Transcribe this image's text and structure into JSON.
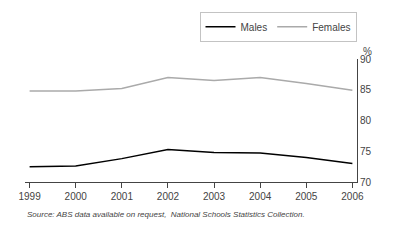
{
  "chart_data": {
    "type": "line",
    "x": [
      1999,
      2000,
      2001,
      2002,
      2003,
      2004,
      2005,
      2006
    ],
    "series": [
      {
        "name": "Males",
        "color": "#000000",
        "values": [
          72.5,
          72.6,
          73.8,
          75.3,
          74.8,
          74.7,
          74.0,
          73.0
        ]
      },
      {
        "name": "Females",
        "color": "#aaaaaa",
        "values": [
          84.8,
          84.8,
          85.2,
          87.0,
          86.5,
          87.0,
          86.0,
          84.9
        ]
      }
    ],
    "xlim": [
      1998.9,
      2006.1
    ],
    "xticks": [
      1999,
      2000,
      2001,
      2002,
      2003,
      2004,
      2005,
      2006
    ],
    "ylim": [
      70,
      90
    ],
    "yticks": [
      70,
      75,
      80,
      85,
      90
    ],
    "ylabel": "%",
    "annotations": [
      "Source: ABS data available on request,  National Schools Statistics Collection."
    ],
    "legend": "upper right",
    "grid": false
  }
}
